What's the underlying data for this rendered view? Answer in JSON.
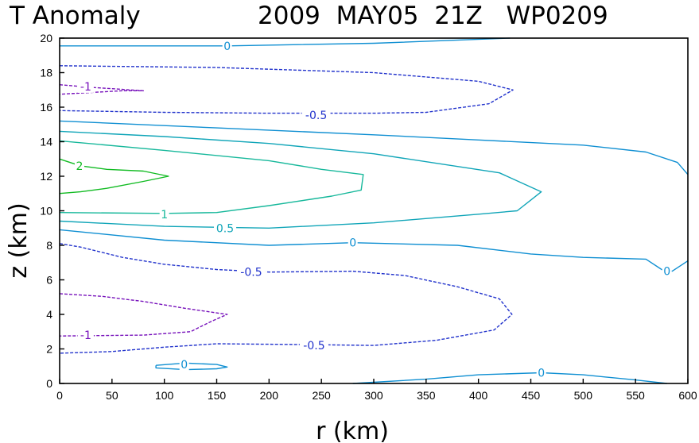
{
  "chart_data": {
    "type": "contour",
    "title_left": "T Anomaly",
    "title_right": "2009  MAY05  21Z   WP0209",
    "xlabel": "r (km)",
    "ylabel": "z (km)",
    "xlim": [
      0,
      600
    ],
    "ylim": [
      0,
      20
    ],
    "x_ticks": [
      0,
      50,
      100,
      150,
      200,
      250,
      300,
      350,
      400,
      450,
      500,
      550,
      600
    ],
    "y_ticks": [
      0,
      2,
      4,
      6,
      8,
      10,
      12,
      14,
      16,
      18,
      20
    ],
    "grid": false,
    "colors": {
      "2": "#11bb22",
      "1": "#17b89b",
      "0.5": "#10a5b8",
      "0": "#0f8fd2",
      "-0.5": "#2233cc",
      "-1": "#7711bb"
    },
    "contours": [
      {
        "level": 2,
        "label": "2",
        "dashed": false,
        "points": [
          [
            0,
            13.0
          ],
          [
            20,
            12.6
          ],
          [
            45,
            12.4
          ],
          [
            80,
            12.3
          ],
          [
            104,
            12.0
          ],
          [
            80,
            11.7
          ],
          [
            45,
            11.3
          ],
          [
            20,
            11.1
          ],
          [
            0,
            11.0
          ]
        ]
      },
      {
        "level": 1,
        "label": "1",
        "dashed": false,
        "points": [
          [
            0,
            14.05
          ],
          [
            100,
            13.5
          ],
          [
            200,
            12.9
          ],
          [
            250,
            12.4
          ],
          [
            290,
            12.1
          ],
          [
            288,
            11.2
          ],
          [
            260,
            10.85
          ],
          [
            200,
            10.3
          ],
          [
            150,
            9.9
          ],
          [
            100,
            9.85
          ],
          [
            0,
            9.9
          ]
        ]
      },
      {
        "level": 0.5,
        "label": "0.5",
        "dashed": false,
        "points": [
          [
            0,
            14.6
          ],
          [
            100,
            14.3
          ],
          [
            200,
            13.9
          ],
          [
            300,
            13.3
          ],
          [
            420,
            12.2
          ],
          [
            460,
            11.1
          ],
          [
            437,
            10.0
          ],
          [
            400,
            9.8
          ],
          [
            300,
            9.3
          ],
          [
            200,
            9.0
          ],
          [
            100,
            9.1
          ],
          [
            0,
            9.4
          ]
        ]
      },
      {
        "level": 0,
        "label": "0",
        "dashed": false,
        "points": [
          [
            0,
            15.2
          ],
          [
            150,
            14.8
          ],
          [
            300,
            14.4
          ],
          [
            400,
            14.1
          ],
          [
            500,
            13.8
          ],
          [
            560,
            13.4
          ],
          [
            590,
            12.8
          ],
          [
            600,
            12.1
          ]
        ]
      },
      {
        "level": 0,
        "label": "0",
        "dashed": false,
        "points": [
          [
            0,
            8.9
          ],
          [
            100,
            8.3
          ],
          [
            200,
            8.0
          ],
          [
            280,
            8.15
          ],
          [
            380,
            8.0
          ],
          [
            450,
            7.5
          ],
          [
            500,
            7.3
          ],
          [
            560,
            7.2
          ],
          [
            575,
            6.6
          ],
          [
            585,
            6.5
          ],
          [
            600,
            7.1
          ]
        ]
      },
      {
        "level": 0,
        "label": "0",
        "dashed": false,
        "points": [
          [
            0,
            19.55
          ],
          [
            160,
            19.55
          ],
          [
            300,
            19.7
          ],
          [
            430,
            20.0
          ]
        ]
      },
      {
        "level": 0,
        "label": "0",
        "dashed": false,
        "points": [
          [
            280,
            0.0
          ],
          [
            350,
            0.25
          ],
          [
            400,
            0.5
          ],
          [
            460,
            0.62
          ],
          [
            500,
            0.5
          ],
          [
            550,
            0.2
          ],
          [
            580,
            0.0
          ]
        ]
      },
      {
        "level": 0,
        "label": "0",
        "dashed": false,
        "points": [
          [
            92,
            1.05
          ],
          [
            120,
            1.18
          ],
          [
            150,
            1.1
          ],
          [
            160,
            0.95
          ],
          [
            150,
            0.85
          ],
          [
            120,
            0.8
          ],
          [
            92,
            0.9
          ],
          [
            92,
            1.05
          ]
        ]
      },
      {
        "level": -0.5,
        "label": "-0.5",
        "dashed": true,
        "points": [
          [
            0,
            18.4
          ],
          [
            150,
            18.3
          ],
          [
            300,
            18.0
          ],
          [
            400,
            17.5
          ],
          [
            433,
            17.0
          ],
          [
            410,
            16.2
          ],
          [
            350,
            15.7
          ],
          [
            300,
            15.65
          ],
          [
            200,
            15.65
          ],
          [
            100,
            15.7
          ],
          [
            0,
            15.8
          ]
        ]
      },
      {
        "level": -0.5,
        "label": "-0.5",
        "dashed": true,
        "points": [
          [
            0,
            8.1
          ],
          [
            20,
            7.9
          ],
          [
            60,
            7.3
          ],
          [
            100,
            6.9
          ],
          [
            150,
            6.6
          ],
          [
            200,
            6.45
          ],
          [
            280,
            6.5
          ],
          [
            330,
            6.25
          ],
          [
            380,
            5.6
          ],
          [
            420,
            4.9
          ],
          [
            432,
            4.0
          ],
          [
            415,
            3.1
          ],
          [
            360,
            2.5
          ],
          [
            300,
            2.2
          ],
          [
            240,
            2.25
          ],
          [
            150,
            2.3
          ],
          [
            100,
            2.1
          ],
          [
            50,
            1.85
          ],
          [
            0,
            1.75
          ]
        ]
      },
      {
        "level": -1,
        "label": "-1",
        "dashed": true,
        "points": [
          [
            0,
            17.3
          ],
          [
            30,
            17.15
          ],
          [
            80,
            16.95
          ],
          [
            60,
            16.95
          ],
          [
            30,
            16.85
          ],
          [
            0,
            16.75
          ]
        ]
      },
      {
        "level": -1,
        "label": "-1",
        "dashed": true,
        "points": [
          [
            0,
            5.2
          ],
          [
            40,
            5.05
          ],
          [
            80,
            4.75
          ],
          [
            120,
            4.35
          ],
          [
            160,
            4.0
          ],
          [
            145,
            3.6
          ],
          [
            125,
            3.0
          ],
          [
            80,
            2.8
          ],
          [
            0,
            2.75
          ]
        ]
      }
    ],
    "labels": [
      {
        "text": "0",
        "x": 160,
        "y": 19.55,
        "level": "0"
      },
      {
        "text": "-1",
        "x": 25,
        "y": 17.2,
        "level": "-1"
      },
      {
        "text": "-0.5",
        "x": 245,
        "y": 15.55,
        "level": "-0.5"
      },
      {
        "text": "2",
        "x": 19,
        "y": 12.6,
        "level": "2"
      },
      {
        "text": "1",
        "x": 100,
        "y": 9.8,
        "level": "1"
      },
      {
        "text": "0.5",
        "x": 158,
        "y": 9.0,
        "level": "0.5"
      },
      {
        "text": "0",
        "x": 280,
        "y": 8.15,
        "level": "0"
      },
      {
        "text": "0",
        "x": 580,
        "y": 6.5,
        "level": "0"
      },
      {
        "text": "-0.5",
        "x": 183,
        "y": 6.45,
        "level": "-0.5"
      },
      {
        "text": "-1",
        "x": 25,
        "y": 2.8,
        "level": "-1"
      },
      {
        "text": "-0.5",
        "x": 243,
        "y": 2.2,
        "level": "-0.5"
      },
      {
        "text": "0",
        "x": 119,
        "y": 1.1,
        "level": "0"
      },
      {
        "text": "0",
        "x": 460,
        "y": 0.62,
        "level": "0"
      }
    ]
  }
}
